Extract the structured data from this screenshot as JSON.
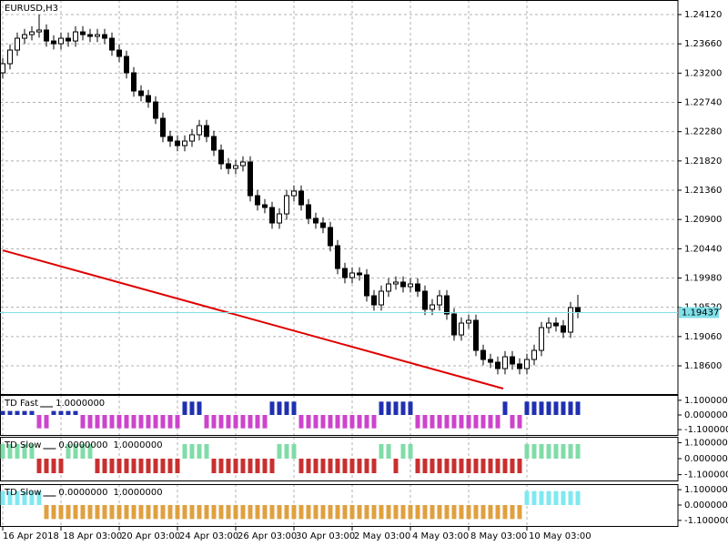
{
  "chart_data": [
    {
      "type": "candlestick",
      "title": "EURUSD,H3",
      "categories": [
        "16 Apr 2018",
        null,
        null,
        null,
        null,
        null,
        null,
        null,
        "18 Apr 03:00",
        null,
        null,
        null,
        null,
        null,
        null,
        null,
        "20 Apr 03:00",
        null,
        null,
        null,
        null,
        null,
        null,
        null,
        "24 Apr 03:00",
        null,
        null,
        null,
        null,
        null,
        null,
        null,
        "26 Apr 03:00",
        null,
        null,
        null,
        null,
        null,
        null,
        null,
        "30 Apr 03:00",
        null,
        null,
        null,
        null,
        null,
        null,
        null,
        "2 May 03:00",
        null,
        null,
        null,
        null,
        null,
        null,
        null,
        "4 May 03:00",
        null,
        null,
        null,
        null,
        null,
        null,
        null,
        "8 May 03:00",
        null,
        null,
        null,
        null,
        null,
        null,
        null,
        "10 May 03:00",
        null,
        null,
        null,
        null,
        null,
        null,
        null
      ],
      "open": [
        1.23205,
        1.23348,
        1.23562,
        1.23748,
        1.23805,
        1.23848,
        1.23877,
        1.23705,
        1.23662,
        1.23748,
        1.23705,
        1.23848,
        1.23805,
        1.23777,
        1.23805,
        1.23748,
        1.23562,
        1.23462,
        1.23205,
        1.22919,
        1.22847,
        1.22747,
        1.2249,
        1.22204,
        1.22132,
        1.22061,
        1.22132,
        1.22232,
        1.22375,
        1.22204,
        1.21989,
        1.21775,
        1.21703,
        1.21746,
        1.21803,
        1.21274,
        1.21131,
        1.21088,
        1.20845,
        1.20988,
        1.21274,
        1.21346,
        1.21131,
        1.20917,
        1.20845,
        1.20774,
        1.20488,
        1.2013,
        1.19987,
        1.20059,
        1.2003,
        1.19701,
        1.19558,
        1.19773,
        1.19887,
        1.19916,
        1.19844,
        1.19887,
        1.19773,
        1.19487,
        1.19558,
        1.19701,
        1.19415,
        1.19086,
        1.19272,
        1.19315,
        1.18843,
        1.187,
        1.18657,
        1.18557,
        1.18743,
        1.18629,
        1.18557,
        1.187,
        1.18843,
        1.19201,
        1.19272,
        1.19229,
        1.19129,
        1.19515
      ],
      "high": [
        1.23438,
        1.23652,
        1.23838,
        1.23895,
        1.23938,
        1.2412,
        1.23967,
        1.23795,
        1.23838,
        1.23838,
        1.23938,
        1.23938,
        1.23895,
        1.23895,
        1.23895,
        1.23838,
        1.23652,
        1.23552,
        1.23295,
        1.23009,
        1.22937,
        1.22837,
        1.2258,
        1.22294,
        1.22222,
        1.22222,
        1.22322,
        1.22465,
        1.22465,
        1.22294,
        1.22079,
        1.21865,
        1.21836,
        1.21893,
        1.21893,
        1.21364,
        1.21221,
        1.21178,
        1.21078,
        1.21364,
        1.21436,
        1.21436,
        1.21221,
        1.21007,
        1.20935,
        1.20864,
        1.20578,
        1.2022,
        1.20149,
        1.20149,
        1.2012,
        1.19791,
        1.19863,
        1.19977,
        1.20006,
        1.20006,
        1.19977,
        1.19977,
        1.19863,
        1.19648,
        1.19791,
        1.19791,
        1.19505,
        1.19362,
        1.19405,
        1.19405,
        1.18933,
        1.1879,
        1.18747,
        1.18833,
        1.18833,
        1.18719,
        1.1879,
        1.18933,
        1.19291,
        1.19362,
        1.19362,
        1.19319,
        1.19605,
        1.19715
      ],
      "low": [
        1.23115,
        1.23258,
        1.23472,
        1.23658,
        1.23715,
        1.23758,
        1.23615,
        1.23572,
        1.23572,
        1.23615,
        1.23615,
        1.23715,
        1.23687,
        1.23687,
        1.23658,
        1.23472,
        1.23372,
        1.23115,
        1.22829,
        1.22757,
        1.22657,
        1.224,
        1.22114,
        1.22042,
        1.21971,
        1.21971,
        1.22042,
        1.22142,
        1.22114,
        1.21899,
        1.21685,
        1.21613,
        1.21613,
        1.21656,
        1.21184,
        1.21041,
        1.20998,
        1.20755,
        1.20755,
        1.20898,
        1.21184,
        1.21041,
        1.20827,
        1.20755,
        1.20684,
        1.20398,
        1.2004,
        1.19897,
        1.19897,
        1.1994,
        1.19611,
        1.19468,
        1.19468,
        1.19683,
        1.19797,
        1.19754,
        1.19754,
        1.19683,
        1.19397,
        1.19397,
        1.19468,
        1.19325,
        1.18996,
        1.18996,
        1.19182,
        1.18753,
        1.1861,
        1.18567,
        1.18467,
        1.18467,
        1.18539,
        1.18467,
        1.18467,
        1.1861,
        1.18753,
        1.19111,
        1.19139,
        1.19039,
        1.19039,
        1.19347
      ],
      "close": [
        1.23348,
        1.23562,
        1.23748,
        1.23805,
        1.23848,
        1.23877,
        1.23705,
        1.23662,
        1.23748,
        1.23705,
        1.23848,
        1.23805,
        1.23777,
        1.23805,
        1.23748,
        1.23562,
        1.23462,
        1.23205,
        1.22919,
        1.22847,
        1.22747,
        1.2249,
        1.22204,
        1.22132,
        1.22061,
        1.22132,
        1.22232,
        1.22375,
        1.22204,
        1.21989,
        1.21775,
        1.21703,
        1.21746,
        1.21803,
        1.21274,
        1.21131,
        1.21088,
        1.20845,
        1.20988,
        1.21274,
        1.21346,
        1.21131,
        1.20917,
        1.20845,
        1.20774,
        1.20488,
        1.2013,
        1.19987,
        1.20059,
        1.2003,
        1.19701,
        1.19558,
        1.19773,
        1.19887,
        1.19916,
        1.19844,
        1.19887,
        1.19773,
        1.19487,
        1.19558,
        1.19701,
        1.19415,
        1.19086,
        1.19272,
        1.19315,
        1.18843,
        1.187,
        1.18657,
        1.18557,
        1.18743,
        1.18629,
        1.18557,
        1.187,
        1.18843,
        1.19201,
        1.19272,
        1.19229,
        1.19129,
        1.19515,
        1.19437
      ],
      "bull_color": "#ffffff",
      "bear_color": "#000000",
      "wick_color": "#000000",
      "ylim": [
        1.18157,
        1.24349
      ],
      "yticks": [
        {
          "value": 1.2412,
          "label": "1.24120"
        },
        {
          "value": 1.2366,
          "label": "1.23660"
        },
        {
          "value": 1.232,
          "label": "1.23200"
        },
        {
          "value": 1.2274,
          "label": "1.22740"
        },
        {
          "value": 1.2228,
          "label": "1.22280"
        },
        {
          "value": 1.2182,
          "label": "1.21820"
        },
        {
          "value": 1.2136,
          "label": "1.21360"
        },
        {
          "value": 1.209,
          "label": "1.20900"
        },
        {
          "value": 1.2044,
          "label": "1.20440"
        },
        {
          "value": 1.1998,
          "label": "1.19980"
        },
        {
          "value": 1.1952,
          "label": "1.19520"
        },
        {
          "value": 1.1906,
          "label": "1.19060"
        },
        {
          "value": 1.186,
          "label": "1.18600"
        }
      ],
      "grid": true,
      "bid": 1.19437,
      "bid_color": "#7fe0e8",
      "trendline": {
        "x": [
          0,
          68.75
        ],
        "values": [
          1.20416,
          1.18243
        ],
        "color": "#e00000"
      }
    },
    {
      "type": "bar",
      "name": "TD Fast",
      "readouts": [
        "1.0000000"
      ],
      "up_color": "#2030b0",
      "down_color": "#cc44cc",
      "values": [
        0.3,
        0.3,
        0.3,
        0.3,
        0.3,
        -1,
        -1,
        0.3,
        0.3,
        0.3,
        0.3,
        -1,
        -1,
        -1,
        -1,
        -1,
        -1,
        -1,
        -1,
        -1,
        -1,
        -1,
        -1,
        -1,
        -1,
        1,
        1,
        1,
        -1,
        -1,
        -1,
        -1,
        -1,
        -1,
        -1,
        -1,
        -1,
        1,
        1,
        1,
        1,
        -1,
        -1,
        -1,
        -1,
        -1,
        -1,
        -1,
        -1,
        -1,
        -1,
        -1,
        1,
        1,
        1,
        1,
        1,
        -1,
        -1,
        -1,
        -1,
        -1,
        -1,
        -1,
        -1,
        -1,
        -1,
        -1,
        -1,
        1,
        -1,
        -1,
        1,
        1,
        1,
        1,
        1,
        1,
        1,
        1
      ],
      "ylim": [
        -1.5,
        1.5
      ],
      "yticks": [
        {
          "value": 1.1,
          "label": "1.100000"
        },
        {
          "value": 0,
          "label": "0.000000"
        },
        {
          "value": -1.1,
          "label": "-1.100000"
        }
      ]
    },
    {
      "type": "bar",
      "name": "TD Slow",
      "readouts": [
        "0.0000000",
        "1.0000000"
      ],
      "up_color": "#80dca8",
      "down_color": "#c83030",
      "values": [
        1,
        1,
        1,
        1,
        1,
        -1,
        -1,
        -1,
        -1,
        1,
        1,
        1,
        1,
        -1,
        -1,
        -1,
        -1,
        -1,
        -1,
        -1,
        -1,
        -1,
        -1,
        -1,
        -1,
        1,
        1,
        1,
        1,
        -1,
        -1,
        -1,
        -1,
        -1,
        -1,
        -1,
        -1,
        -1,
        1,
        1,
        1,
        -1,
        -1,
        -1,
        -1,
        -1,
        -1,
        -1,
        -1,
        -1,
        -1,
        -1,
        1,
        1,
        -1,
        1,
        1,
        -1,
        -1,
        -1,
        -1,
        -1,
        -1,
        -1,
        -1,
        -1,
        -1,
        -1,
        -1,
        -1,
        -1,
        -1,
        1,
        1,
        1,
        1,
        1,
        1,
        1,
        1
      ],
      "ylim": [
        -1.5,
        1.5
      ],
      "yticks": [
        {
          "value": 1.1,
          "label": "1.100000"
        },
        {
          "value": 0,
          "label": "0.000000"
        },
        {
          "value": -1.1,
          "label": "-1.100000"
        }
      ]
    },
    {
      "type": "bar",
      "name": "TD Slow",
      "readouts": [
        "0.0000000",
        "1.0000000"
      ],
      "up_color": "#80e8f0",
      "down_color": "#e0a040",
      "values": [
        1,
        1,
        1,
        1,
        1,
        1,
        -1,
        -1,
        -1,
        -1,
        -1,
        -1,
        -1,
        -1,
        -1,
        -1,
        -1,
        -1,
        -1,
        -1,
        -1,
        -1,
        -1,
        -1,
        -1,
        -1,
        -1,
        -1,
        -1,
        -1,
        -1,
        -1,
        -1,
        -1,
        -1,
        -1,
        -1,
        -1,
        -1,
        -1,
        -1,
        -1,
        -1,
        -1,
        -1,
        -1,
        -1,
        -1,
        -1,
        -1,
        -1,
        -1,
        -1,
        -1,
        -1,
        -1,
        -1,
        -1,
        -1,
        -1,
        -1,
        -1,
        -1,
        -1,
        -1,
        -1,
        -1,
        -1,
        -1,
        -1,
        -1,
        -1,
        1,
        1,
        1,
        1,
        1,
        1,
        1,
        1
      ],
      "ylim": [
        -1.5,
        1.5
      ],
      "yticks": [
        {
          "value": 1.1,
          "label": "1.100000"
        },
        {
          "value": 0,
          "label": "0.000000"
        },
        {
          "value": -1.1,
          "label": "-1.100000"
        }
      ]
    }
  ]
}
